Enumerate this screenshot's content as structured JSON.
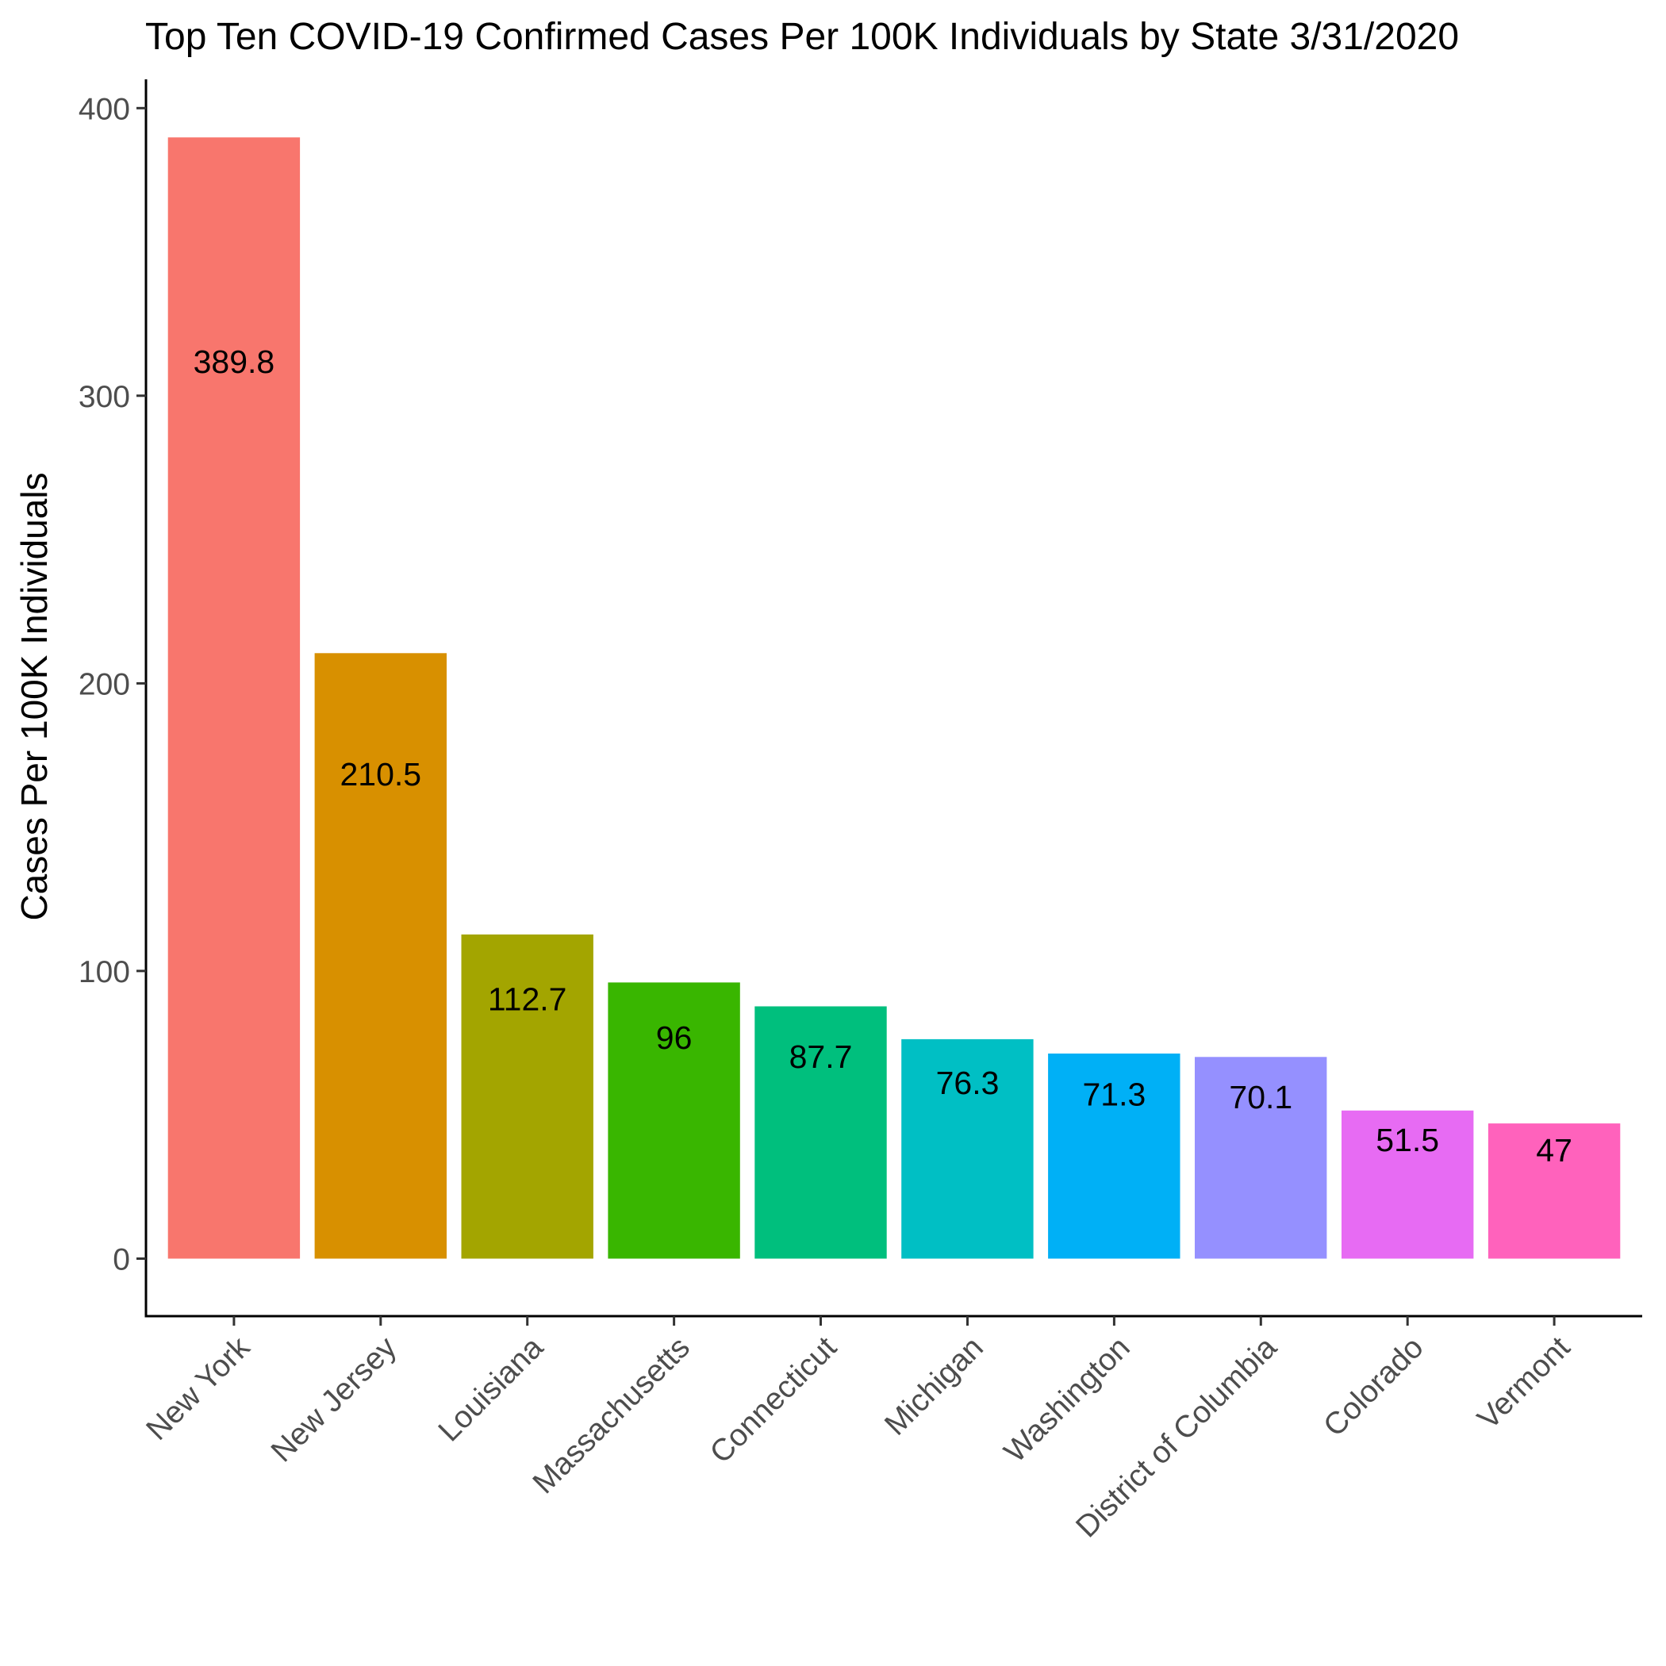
{
  "chart_data": {
    "type": "bar",
    "title": "Top Ten COVID-19 Confirmed Cases Per 100K Individuals by State 3/31/2020",
    "xlabel": "",
    "ylabel": "Cases Per 100K Individuals",
    "categories": [
      "New York",
      "New Jersey",
      "Louisiana",
      "Massachusetts",
      "Connecticut",
      "Michigan",
      "Washington",
      "District of Columbia",
      "Colorado",
      "Vermont"
    ],
    "values": [
      389.8,
      210.5,
      112.7,
      96,
      87.7,
      76.3,
      71.3,
      70.1,
      51.5,
      47
    ],
    "value_labels": [
      "389.8",
      "210.5",
      "112.7",
      "96",
      "87.7",
      "76.3",
      "71.3",
      "70.1",
      "51.5",
      "47"
    ],
    "colors": [
      "#F8766D",
      "#D89000",
      "#A3A500",
      "#39B600",
      "#00BF7D",
      "#00BFC4",
      "#00B0F6",
      "#9590FF",
      "#E76BF3",
      "#FF62BC"
    ],
    "yticks": [
      0,
      100,
      200,
      300,
      400
    ],
    "ytick_labels": [
      "0",
      "100",
      "200",
      "300",
      "400"
    ],
    "ylim": [
      -20,
      410
    ],
    "grid": false,
    "legend": "none"
  }
}
